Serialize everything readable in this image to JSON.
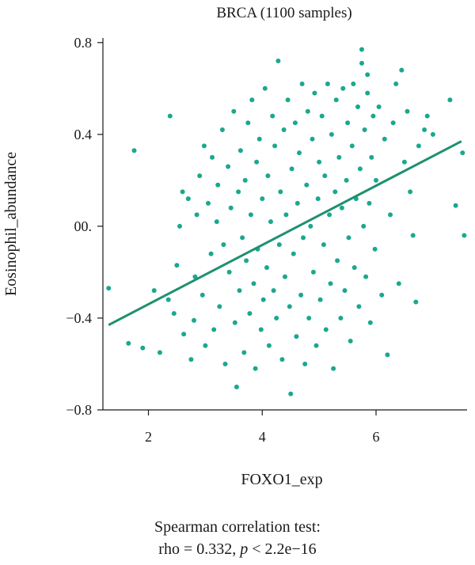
{
  "chart_data": {
    "type": "scatter",
    "title": "BRCA (1100 samples)",
    "xlabel": "FOXO1_exp",
    "ylabel": "Eosinophil_abundance",
    "xlim": [
      1.2,
      7.6
    ],
    "ylim": [
      -0.8,
      0.82
    ],
    "x_ticks": [
      2,
      4,
      6
    ],
    "x_tick_labels": [
      "2",
      "4",
      "6"
    ],
    "y_ticks": [
      0.8,
      0.4,
      0.0,
      -0.4,
      -0.8
    ],
    "y_tick_labels": [
      "0.8",
      "0.4",
      "00.",
      "−0.4",
      "−0.8"
    ],
    "point_color": "#1aa88e",
    "line_color": "#1e9070",
    "regression_line": {
      "x": [
        1.3,
        7.5
      ],
      "y": [
        -0.43,
        0.37
      ]
    },
    "series": [
      {
        "values": [
          [
            1.3,
            -0.27
          ],
          [
            1.65,
            -0.51
          ],
          [
            1.75,
            0.33
          ],
          [
            1.9,
            -0.53
          ],
          [
            2.1,
            -0.28
          ],
          [
            2.2,
            -0.55
          ],
          [
            2.35,
            -0.32
          ],
          [
            2.38,
            0.48
          ],
          [
            2.45,
            -0.38
          ],
          [
            2.5,
            -0.17
          ],
          [
            2.55,
            0.0
          ],
          [
            2.6,
            0.15
          ],
          [
            2.62,
            -0.47
          ],
          [
            2.7,
            0.12
          ],
          [
            2.75,
            -0.58
          ],
          [
            2.8,
            -0.41
          ],
          [
            2.82,
            -0.22
          ],
          [
            2.85,
            0.05
          ],
          [
            2.9,
            0.22
          ],
          [
            2.95,
            -0.3
          ],
          [
            2.98,
            0.35
          ],
          [
            3.0,
            -0.52
          ],
          [
            3.05,
            0.1
          ],
          [
            3.1,
            -0.12
          ],
          [
            3.12,
            0.3
          ],
          [
            3.15,
            -0.45
          ],
          [
            3.2,
            0.02
          ],
          [
            3.22,
            0.18
          ],
          [
            3.25,
            -0.35
          ],
          [
            3.3,
            0.42
          ],
          [
            3.32,
            -0.08
          ],
          [
            3.35,
            -0.6
          ],
          [
            3.4,
            0.26
          ],
          [
            3.42,
            -0.2
          ],
          [
            3.45,
            0.08
          ],
          [
            3.5,
            0.5
          ],
          [
            3.52,
            -0.42
          ],
          [
            3.55,
            -0.7
          ],
          [
            3.58,
            0.15
          ],
          [
            3.6,
            -0.28
          ],
          [
            3.62,
            0.33
          ],
          [
            3.65,
            -0.05
          ],
          [
            3.68,
            -0.55
          ],
          [
            3.7,
            0.2
          ],
          [
            3.72,
            -0.15
          ],
          [
            3.75,
            0.45
          ],
          [
            3.78,
            -0.38
          ],
          [
            3.8,
            0.05
          ],
          [
            3.82,
            0.55
          ],
          [
            3.85,
            -0.25
          ],
          [
            3.88,
            -0.62
          ],
          [
            3.9,
            0.28
          ],
          [
            3.92,
            -0.1
          ],
          [
            3.95,
            0.38
          ],
          [
            3.98,
            -0.45
          ],
          [
            4.0,
            0.12
          ],
          [
            4.02,
            -0.32
          ],
          [
            4.05,
            0.6
          ],
          [
            4.08,
            -0.18
          ],
          [
            4.1,
            0.22
          ],
          [
            4.12,
            -0.52
          ],
          [
            4.15,
            0.02
          ],
          [
            4.18,
            0.48
          ],
          [
            4.2,
            -0.28
          ],
          [
            4.22,
            0.35
          ],
          [
            4.25,
            -0.4
          ],
          [
            4.28,
            0.72
          ],
          [
            4.3,
            -0.08
          ],
          [
            4.32,
            0.15
          ],
          [
            4.35,
            -0.58
          ],
          [
            4.38,
            0.42
          ],
          [
            4.4,
            -0.22
          ],
          [
            4.42,
            0.05
          ],
          [
            4.45,
            0.55
          ],
          [
            4.48,
            -0.35
          ],
          [
            4.5,
            -0.73
          ],
          [
            4.52,
            0.25
          ],
          [
            4.55,
            -0.12
          ],
          [
            4.58,
            0.45
          ],
          [
            4.6,
            -0.48
          ],
          [
            4.62,
            0.1
          ],
          [
            4.65,
            0.32
          ],
          [
            4.68,
            -0.3
          ],
          [
            4.7,
            0.62
          ],
          [
            4.72,
            -0.05
          ],
          [
            4.75,
            -0.6
          ],
          [
            4.78,
            0.18
          ],
          [
            4.8,
            0.5
          ],
          [
            4.82,
            -0.4
          ],
          [
            4.85,
            0.0
          ],
          [
            4.88,
            0.38
          ],
          [
            4.9,
            -0.2
          ],
          [
            4.92,
            0.58
          ],
          [
            4.95,
            -0.52
          ],
          [
            4.98,
            0.12
          ],
          [
            5.0,
            0.28
          ],
          [
            5.02,
            -0.32
          ],
          [
            5.05,
            0.48
          ],
          [
            5.08,
            -0.08
          ],
          [
            5.1,
            0.22
          ],
          [
            5.12,
            -0.45
          ],
          [
            5.15,
            0.62
          ],
          [
            5.18,
            0.05
          ],
          [
            5.2,
            -0.25
          ],
          [
            5.22,
            0.4
          ],
          [
            5.25,
            -0.62
          ],
          [
            5.28,
            0.15
          ],
          [
            5.3,
            0.55
          ],
          [
            5.32,
            -0.15
          ],
          [
            5.35,
            0.3
          ],
          [
            5.38,
            -0.4
          ],
          [
            5.4,
            0.08
          ],
          [
            5.42,
            0.6
          ],
          [
            5.45,
            -0.28
          ],
          [
            5.48,
            0.2
          ],
          [
            5.5,
            0.45
          ],
          [
            5.52,
            -0.05
          ],
          [
            5.55,
            -0.5
          ],
          [
            5.58,
            0.35
          ],
          [
            5.6,
            0.62
          ],
          [
            5.62,
            -0.18
          ],
          [
            5.65,
            0.12
          ],
          [
            5.68,
            0.52
          ],
          [
            5.7,
            -0.35
          ],
          [
            5.72,
            0.25
          ],
          [
            5.75,
            0.77
          ],
          [
            5.78,
            0.0
          ],
          [
            5.8,
            0.42
          ],
          [
            5.82,
            -0.22
          ],
          [
            5.85,
            0.58
          ],
          [
            5.88,
            0.1
          ],
          [
            5.9,
            -0.42
          ],
          [
            5.92,
            0.3
          ],
          [
            5.95,
            0.48
          ],
          [
            5.98,
            -0.1
          ],
          [
            6.0,
            0.2
          ],
          [
            6.05,
            0.52
          ],
          [
            6.1,
            -0.3
          ],
          [
            6.15,
            0.38
          ],
          [
            6.2,
            -0.56
          ],
          [
            6.25,
            0.05
          ],
          [
            6.3,
            0.45
          ],
          [
            6.35,
            0.62
          ],
          [
            6.4,
            -0.25
          ],
          [
            6.45,
            0.68
          ],
          [
            6.5,
            0.28
          ],
          [
            6.55,
            0.5
          ],
          [
            6.6,
            0.15
          ],
          [
            6.65,
            -0.04
          ],
          [
            6.7,
            -0.33
          ],
          [
            6.75,
            0.35
          ],
          [
            6.85,
            0.42
          ],
          [
            6.9,
            0.48
          ],
          [
            7.0,
            0.4
          ],
          [
            7.3,
            0.55
          ],
          [
            7.4,
            0.09
          ],
          [
            7.52,
            0.32
          ],
          [
            7.55,
            -0.04
          ],
          [
            5.75,
            0.71
          ],
          [
            5.85,
            0.66
          ]
        ]
      }
    ],
    "annotation": {
      "line1": "Spearman correlation test:",
      "line2_prefix": "rho = 0.332, ",
      "line2_italic": "p",
      "line2_suffix": " < 2.2e−16"
    }
  }
}
